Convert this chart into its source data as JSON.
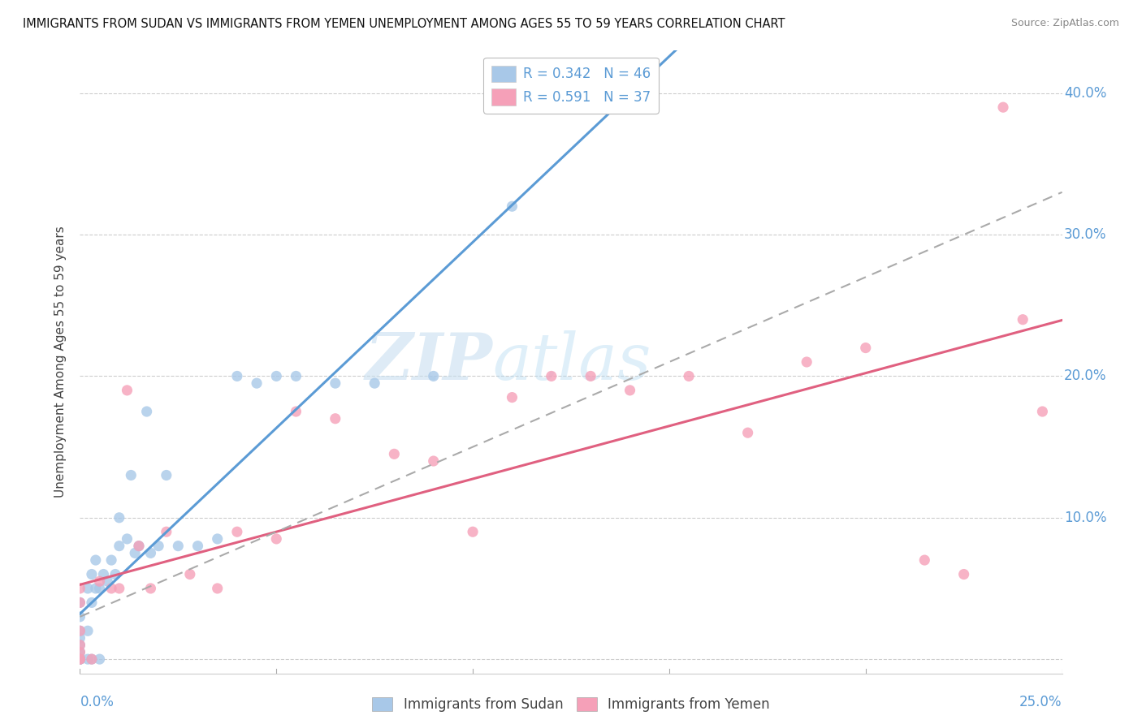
{
  "title": "IMMIGRANTS FROM SUDAN VS IMMIGRANTS FROM YEMEN UNEMPLOYMENT AMONG AGES 55 TO 59 YEARS CORRELATION CHART",
  "source": "Source: ZipAtlas.com",
  "ylabel": "Unemployment Among Ages 55 to 59 years",
  "xlim": [
    0.0,
    0.25
  ],
  "ylim": [
    -0.01,
    0.43
  ],
  "xticks": [
    0.0,
    0.05,
    0.1,
    0.15,
    0.2,
    0.25
  ],
  "xticklabels_left": "0.0%",
  "xticklabels_right": "25.0%",
  "ytick_vals": [
    0.0,
    0.1,
    0.2,
    0.3,
    0.4
  ],
  "ytick_labels": [
    "",
    "10.0%",
    "20.0%",
    "30.0%",
    "40.0%"
  ],
  "sudan_R": 0.342,
  "sudan_N": 46,
  "yemen_R": 0.591,
  "yemen_N": 37,
  "sudan_color": "#a8c8e8",
  "yemen_color": "#f5a0b8",
  "sudan_line_color": "#5b9bd5",
  "yemen_line_color": "#e06080",
  "gray_dash_color": "#aaaaaa",
  "tick_label_color": "#5b9bd5",
  "background_color": "#ffffff",
  "sudan_points_x": [
    0.0,
    0.0,
    0.0,
    0.0,
    0.0,
    0.0,
    0.0,
    0.0,
    0.0,
    0.0,
    0.0,
    0.002,
    0.002,
    0.002,
    0.003,
    0.003,
    0.003,
    0.004,
    0.004,
    0.005,
    0.005,
    0.006,
    0.007,
    0.008,
    0.009,
    0.01,
    0.01,
    0.012,
    0.013,
    0.014,
    0.015,
    0.017,
    0.018,
    0.02,
    0.022,
    0.025,
    0.03,
    0.035,
    0.04,
    0.045,
    0.05,
    0.055,
    0.065,
    0.075,
    0.09,
    0.11
  ],
  "sudan_points_y": [
    0.0,
    0.0,
    0.0,
    0.0,
    0.0,
    0.005,
    0.01,
    0.015,
    0.02,
    0.03,
    0.04,
    0.0,
    0.02,
    0.05,
    0.0,
    0.04,
    0.06,
    0.05,
    0.07,
    0.0,
    0.05,
    0.06,
    0.055,
    0.07,
    0.06,
    0.08,
    0.1,
    0.085,
    0.13,
    0.075,
    0.08,
    0.175,
    0.075,
    0.08,
    0.13,
    0.08,
    0.08,
    0.085,
    0.2,
    0.195,
    0.2,
    0.2,
    0.195,
    0.195,
    0.2,
    0.32
  ],
  "yemen_points_x": [
    0.0,
    0.0,
    0.0,
    0.0,
    0.0,
    0.0,
    0.0,
    0.003,
    0.005,
    0.008,
    0.01,
    0.012,
    0.015,
    0.018,
    0.022,
    0.028,
    0.035,
    0.04,
    0.05,
    0.055,
    0.065,
    0.08,
    0.09,
    0.1,
    0.11,
    0.12,
    0.13,
    0.14,
    0.155,
    0.17,
    0.185,
    0.2,
    0.215,
    0.225,
    0.235,
    0.24,
    0.245
  ],
  "yemen_points_y": [
    0.0,
    0.0,
    0.005,
    0.01,
    0.02,
    0.04,
    0.05,
    0.0,
    0.055,
    0.05,
    0.05,
    0.19,
    0.08,
    0.05,
    0.09,
    0.06,
    0.05,
    0.09,
    0.085,
    0.175,
    0.17,
    0.145,
    0.14,
    0.09,
    0.185,
    0.2,
    0.2,
    0.19,
    0.2,
    0.16,
    0.21,
    0.22,
    0.07,
    0.06,
    0.39,
    0.24,
    0.175
  ],
  "watermark_zip": "ZIP",
  "watermark_atlas": "atlas",
  "legend_sudan_label": "R = 0.342   N = 46",
  "legend_yemen_label": "R = 0.591   N = 37",
  "bottom_legend_sudan": "Immigrants from Sudan",
  "bottom_legend_yemen": "Immigrants from Yemen"
}
